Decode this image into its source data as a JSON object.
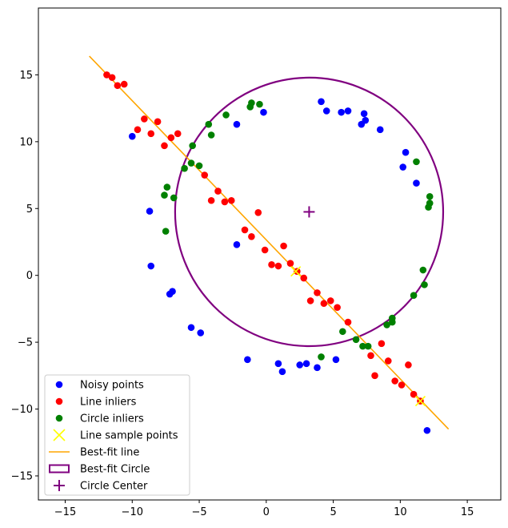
{
  "chart_data": {
    "type": "scatter",
    "title": "",
    "xlabel": "",
    "ylabel": "",
    "xlim": [
      -17,
      17.5
    ],
    "ylim": [
      -16.8,
      20
    ],
    "xticks": [
      -15,
      -10,
      -5,
      0,
      5,
      10,
      15
    ],
    "yticks": [
      -15,
      -10,
      -5,
      0,
      5,
      10,
      15
    ],
    "legend_position": "lower-left",
    "colors": {
      "noisy": "#0000ff",
      "line_inliers": "#ff0000",
      "circle_inliers": "#008000",
      "sample": "#ffff00",
      "line": "#ffa500",
      "circle": "#800080"
    },
    "series": [
      {
        "name": "Noisy points",
        "marker": "circle",
        "points": [
          [
            -10,
            10.4
          ],
          [
            -8.7,
            4.8
          ],
          [
            -8.6,
            0.7
          ],
          [
            -7.2,
            -1.4
          ],
          [
            -7,
            -1.2
          ],
          [
            -5.6,
            -3.9
          ],
          [
            -4.9,
            -4.3
          ],
          [
            -2.2,
            11.3
          ],
          [
            -2.2,
            2.3
          ],
          [
            -1.4,
            -6.3
          ],
          [
            -0.2,
            12.2
          ],
          [
            0.9,
            -6.6
          ],
          [
            1.2,
            -7.2
          ],
          [
            2.5,
            -6.7
          ],
          [
            3.0,
            -6.6
          ],
          [
            3.8,
            -6.9
          ],
          [
            4.1,
            13.0
          ],
          [
            4.5,
            12.3
          ],
          [
            5.2,
            -6.3
          ],
          [
            5.6,
            12.2
          ],
          [
            6.1,
            12.3
          ],
          [
            7.1,
            11.3
          ],
          [
            7.3,
            12.1
          ],
          [
            7.4,
            11.6
          ],
          [
            8.5,
            10.9
          ],
          [
            10.2,
            8.1
          ],
          [
            10.4,
            9.2
          ],
          [
            11.2,
            6.9
          ],
          [
            12.0,
            -11.6
          ]
        ]
      },
      {
        "name": "Line inliers",
        "marker": "circle",
        "points": [
          [
            -11.9,
            15.0
          ],
          [
            -11.5,
            14.8
          ],
          [
            -11.1,
            14.2
          ],
          [
            -10.6,
            14.3
          ],
          [
            -9.1,
            11.7
          ],
          [
            -9.6,
            10.9
          ],
          [
            -8.6,
            10.6
          ],
          [
            -8.1,
            11.5
          ],
          [
            -7.6,
            9.7
          ],
          [
            -7.1,
            10.3
          ],
          [
            -6.6,
            10.6
          ],
          [
            -4.6,
            7.5
          ],
          [
            -4.1,
            5.6
          ],
          [
            -3.6,
            6.3
          ],
          [
            -3.1,
            5.5
          ],
          [
            -2.6,
            5.6
          ],
          [
            -1.6,
            3.4
          ],
          [
            -1.1,
            2.9
          ],
          [
            -0.6,
            4.7
          ],
          [
            -0.1,
            1.9
          ],
          [
            0.4,
            0.8
          ],
          [
            0.9,
            0.7
          ],
          [
            1.3,
            2.2
          ],
          [
            1.8,
            0.9
          ],
          [
            2.3,
            0.3
          ],
          [
            2.8,
            -0.2
          ],
          [
            3.3,
            -1.9
          ],
          [
            3.8,
            -1.3
          ],
          [
            4.3,
            -2.1
          ],
          [
            4.8,
            -1.9
          ],
          [
            5.3,
            -2.4
          ],
          [
            6.1,
            -3.5
          ],
          [
            7.8,
            -6.0
          ],
          [
            8.1,
            -7.5
          ],
          [
            8.6,
            -5.1
          ],
          [
            9.1,
            -6.4
          ],
          [
            9.6,
            -7.9
          ],
          [
            10.1,
            -8.2
          ],
          [
            10.6,
            -6.7
          ],
          [
            11.0,
            -8.9
          ],
          [
            11.5,
            -9.4
          ]
        ]
      },
      {
        "name": "Circle inliers",
        "marker": "circle",
        "points": [
          [
            -7.6,
            6.0
          ],
          [
            -7.5,
            3.3
          ],
          [
            -7.4,
            6.6
          ],
          [
            -6.9,
            5.8
          ],
          [
            -6.1,
            8.0
          ],
          [
            -5.5,
            9.7
          ],
          [
            -5.6,
            8.4
          ],
          [
            -5.0,
            8.2
          ],
          [
            -4.3,
            11.3
          ],
          [
            -4.1,
            10.5
          ],
          [
            -3.0,
            12.0
          ],
          [
            -1.2,
            12.6
          ],
          [
            -1.1,
            12.9
          ],
          [
            -0.5,
            12.8
          ],
          [
            4.1,
            -6.1
          ],
          [
            5.7,
            -4.2
          ],
          [
            6.7,
            -4.8
          ],
          [
            7.2,
            -5.3
          ],
          [
            7.6,
            -5.3
          ],
          [
            9.0,
            -3.7
          ],
          [
            9.4,
            -3.2
          ],
          [
            9.4,
            -3.5
          ],
          [
            11.0,
            -1.5
          ],
          [
            11.2,
            8.5
          ],
          [
            11.7,
            0.4
          ],
          [
            11.8,
            -0.7
          ],
          [
            12.1,
            5.1
          ],
          [
            12.2,
            5.9
          ],
          [
            12.2,
            5.4
          ]
        ]
      },
      {
        "name": "Line sample points",
        "marker": "x",
        "points": [
          [
            2.2,
            0.3
          ],
          [
            11.5,
            -9.4
          ]
        ]
      }
    ],
    "best_fit_line": {
      "name": "Best-fit line",
      "from": [
        -13.2,
        16.4
      ],
      "to": [
        13.6,
        -11.5
      ]
    },
    "best_fit_circle": {
      "name": "Best-fit Circle",
      "center": [
        3.2,
        4.75
      ],
      "radius": 10.0
    },
    "circle_center": {
      "name": "Circle Center",
      "marker": "plus",
      "point": [
        3.2,
        4.75
      ]
    }
  }
}
